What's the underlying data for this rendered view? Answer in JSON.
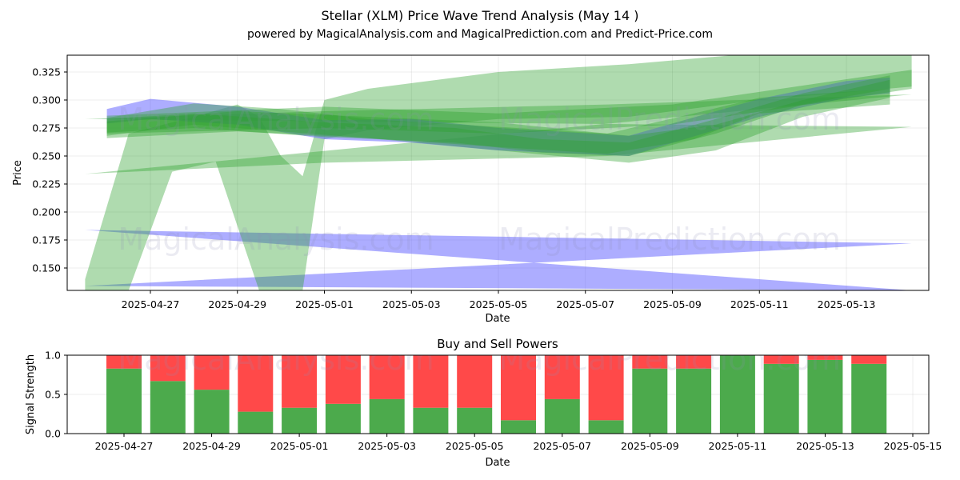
{
  "header": {
    "title": "Stellar (XLM) Price Wave Trend Analysis (May 14 )",
    "subtitle": "powered by MagicalAnalysis.com and MagicalPrediction.com and Predict-Price.com"
  },
  "watermarks": [
    "MagicalAnalysis.com",
    "MagicalPrediction.com"
  ],
  "colors": {
    "green": "#2ca02c",
    "blue": "#6a6aff",
    "buy": "#4caa4c",
    "sell": "#ff4949"
  },
  "chart_data": [
    {
      "type": "area",
      "xlabel": "Date",
      "ylabel": "Price",
      "ylim": [
        0.13,
        0.34
      ],
      "x_ticks": [
        "2025-04-27",
        "2025-04-29",
        "2025-05-01",
        "2025-05-03",
        "2025-05-05",
        "2025-05-07",
        "2025-05-09",
        "2025-05-11",
        "2025-05-13"
      ],
      "y_ticks": [
        "0.150",
        "0.175",
        "0.200",
        "0.225",
        "0.250",
        "0.275",
        "0.300",
        "0.325"
      ],
      "grid": true,
      "bands": [
        {
          "color": "blue",
          "upper": [
            [
              "2025-04-25T12:00",
              0.184
            ],
            [
              "2025-05-14T12:00",
              0.172
            ]
          ],
          "lower": [
            [
              "2025-04-25T12:00",
              0.134
            ],
            [
              "2025-05-14T12:00",
              0.13
            ]
          ]
        },
        {
          "color": "green",
          "upper": [
            [
              "2025-04-25T12:00",
              0.283
            ],
            [
              "2025-05-01T00:00",
              0.29
            ],
            [
              "2025-05-07T12:00",
              0.296
            ],
            [
              "2025-05-14T12:00",
              0.305
            ]
          ],
          "lower": [
            [
              "2025-04-25T12:00",
              0.234
            ],
            [
              "2025-05-01T00:00",
              0.244
            ],
            [
              "2025-05-07T12:00",
              0.25
            ],
            [
              "2025-05-14T12:00",
              0.276
            ]
          ]
        },
        {
          "color": "green",
          "upper": [
            [
              "2025-04-25T12:00",
              0.14
            ],
            [
              "2025-04-26T12:00",
              0.27
            ],
            [
              "2025-04-28T00:00",
              0.285
            ],
            [
              "2025-04-29T00:00",
              0.296
            ],
            [
              "2025-04-29T12:00",
              0.285
            ],
            [
              "2025-04-30T00:00",
              0.25
            ],
            [
              "2025-04-30T12:00",
              0.232
            ],
            [
              "2025-05-01T00:00",
              0.3
            ],
            [
              "2025-05-02T00:00",
              0.31
            ],
            [
              "2025-05-05T00:00",
              0.325
            ],
            [
              "2025-05-08T00:00",
              0.332
            ],
            [
              "2025-05-11T00:00",
              0.342
            ],
            [
              "2025-05-14T12:00",
              0.34
            ]
          ],
          "lower": [
            [
              "2025-05-14T12:00",
              0.312
            ],
            [
              "2025-05-11T00:00",
              0.3
            ],
            [
              "2025-05-08T00:00",
              0.285
            ],
            [
              "2025-05-05T00:00",
              0.283
            ],
            [
              "2025-05-02T00:00",
              0.273
            ],
            [
              "2025-05-01T00:00",
              0.265
            ],
            [
              "2025-04-30T12:00",
              0.13
            ],
            [
              "2025-04-29T12:00",
              0.13
            ],
            [
              "2025-04-28T12:00",
              0.245
            ],
            [
              "2025-04-27T12:00",
              0.236
            ],
            [
              "2025-04-26T12:00",
              0.13
            ],
            [
              "2025-04-25T12:00",
              0.13
            ]
          ]
        },
        {
          "color": "blue",
          "upper": [
            [
              "2025-04-26T00:00",
              0.292
            ],
            [
              "2025-04-27T00:00",
              0.301
            ],
            [
              "2025-04-29T00:00",
              0.294
            ],
            [
              "2025-05-01T00:00",
              0.282
            ],
            [
              "2025-05-03T00:00",
              0.283
            ],
            [
              "2025-05-05T00:00",
              0.275
            ],
            [
              "2025-05-08T00:00",
              0.268
            ],
            [
              "2025-05-11T00:00",
              0.301
            ],
            [
              "2025-05-13T00:00",
              0.317
            ],
            [
              "2025-05-14T00:00",
              0.32
            ]
          ],
          "lower": [
            [
              "2025-05-14T00:00",
              0.306
            ],
            [
              "2025-05-13T00:00",
              0.302
            ],
            [
              "2025-05-11T00:00",
              0.285
            ],
            [
              "2025-05-08T00:00",
              0.25
            ],
            [
              "2025-05-05T00:00",
              0.255
            ],
            [
              "2025-05-03T00:00",
              0.262
            ],
            [
              "2025-05-01T00:00",
              0.265
            ],
            [
              "2025-04-29T00:00",
              0.278
            ],
            [
              "2025-04-27T00:00",
              0.283
            ],
            [
              "2025-04-26T00:00",
              0.279
            ]
          ]
        },
        {
          "color": "green",
          "upper": [
            [
              "2025-04-26T00:00",
              0.284
            ],
            [
              "2025-04-28T00:00",
              0.297
            ],
            [
              "2025-04-30T00:00",
              0.292
            ],
            [
              "2025-05-02T00:00",
              0.283
            ],
            [
              "2025-05-05T00:00",
              0.276
            ],
            [
              "2025-05-07T12:00",
              0.27
            ],
            [
              "2025-05-09T12:00",
              0.288
            ],
            [
              "2025-05-11T00:00",
              0.302
            ],
            [
              "2025-05-14T00:00",
              0.31
            ]
          ],
          "lower": [
            [
              "2025-05-14T00:00",
              0.296
            ],
            [
              "2025-05-11T00:00",
              0.288
            ],
            [
              "2025-05-09T12:00",
              0.265
            ],
            [
              "2025-05-07T12:00",
              0.252
            ],
            [
              "2025-05-05T00:00",
              0.258
            ],
            [
              "2025-05-02T00:00",
              0.266
            ],
            [
              "2025-04-30T00:00",
              0.272
            ],
            [
              "2025-04-28T00:00",
              0.278
            ],
            [
              "2025-04-26T00:00",
              0.268
            ]
          ]
        },
        {
          "color": "green",
          "upper": [
            [
              "2025-04-26T00:00",
              0.281
            ],
            [
              "2025-04-29T00:00",
              0.29
            ],
            [
              "2025-05-02T00:00",
              0.285
            ],
            [
              "2025-05-05T00:00",
              0.28
            ],
            [
              "2025-05-08T00:00",
              0.268
            ],
            [
              "2025-05-10T00:00",
              0.278
            ],
            [
              "2025-05-12T00:00",
              0.3
            ],
            [
              "2025-05-14T00:00",
              0.318
            ]
          ],
          "lower": [
            [
              "2025-05-14T00:00",
              0.302
            ],
            [
              "2025-05-12T00:00",
              0.285
            ],
            [
              "2025-05-10T00:00",
              0.255
            ],
            [
              "2025-05-08T00:00",
              0.244
            ],
            [
              "2025-05-05T00:00",
              0.255
            ],
            [
              "2025-05-02T00:00",
              0.266
            ],
            [
              "2025-04-29T00:00",
              0.272
            ],
            [
              "2025-04-26T00:00",
              0.266
            ]
          ]
        },
        {
          "color": "green",
          "upper": [
            [
              "2025-04-26T00:00",
              0.286
            ],
            [
              "2025-05-01T00:00",
              0.294
            ],
            [
              "2025-05-05T00:00",
              0.288
            ],
            [
              "2025-05-09T00:00",
              0.296
            ],
            [
              "2025-05-14T12:00",
              0.327
            ]
          ],
          "lower": [
            [
              "2025-05-14T12:00",
              0.31
            ],
            [
              "2025-05-09T00:00",
              0.278
            ],
            [
              "2025-05-05T00:00",
              0.27
            ],
            [
              "2025-05-01T00:00",
              0.275
            ],
            [
              "2025-04-26T00:00",
              0.27
            ]
          ]
        },
        {
          "color": "green",
          "upper": [
            [
              "2025-04-26T00:00",
              0.283
            ],
            [
              "2025-04-28T00:00",
              0.288
            ],
            [
              "2025-05-01T00:00",
              0.28
            ],
            [
              "2025-05-04T00:00",
              0.275
            ],
            [
              "2025-05-06T00:00",
              0.265
            ],
            [
              "2025-05-08T00:00",
              0.262
            ],
            [
              "2025-05-10T00:00",
              0.283
            ],
            [
              "2025-05-12T00:00",
              0.306
            ],
            [
              "2025-05-14T00:00",
              0.322
            ]
          ],
          "lower": [
            [
              "2025-05-14T00:00",
              0.31
            ],
            [
              "2025-05-12T00:00",
              0.296
            ],
            [
              "2025-05-10T00:00",
              0.27
            ],
            [
              "2025-05-08T00:00",
              0.25
            ],
            [
              "2025-05-06T00:00",
              0.253
            ],
            [
              "2025-05-04T00:00",
              0.262
            ],
            [
              "2025-05-01T00:00",
              0.267
            ],
            [
              "2025-04-28T00:00",
              0.275
            ],
            [
              "2025-04-26T00:00",
              0.271
            ]
          ]
        }
      ]
    },
    {
      "type": "bar",
      "title": "Buy and Sell Powers",
      "xlabel": "Date",
      "ylabel": "Signal Strength",
      "ylim": [
        0,
        1
      ],
      "y_ticks": [
        "0.0",
        "0.5",
        "1.0"
      ],
      "x_ticks": [
        "2025-04-27",
        "2025-04-29",
        "2025-05-01",
        "2025-05-03",
        "2025-05-05",
        "2025-05-07",
        "2025-05-09",
        "2025-05-11",
        "2025-05-13",
        "2025-05-15"
      ],
      "categories": [
        "2025-04-27",
        "2025-04-28",
        "2025-04-29",
        "2025-04-30",
        "2025-05-01",
        "2025-05-02",
        "2025-05-03",
        "2025-05-04",
        "2025-05-05",
        "2025-05-06",
        "2025-05-07",
        "2025-05-08",
        "2025-05-09",
        "2025-05-10",
        "2025-05-11",
        "2025-05-12",
        "2025-05-13",
        "2025-05-14"
      ],
      "series": [
        {
          "color": "buy",
          "values": [
            0.83,
            0.67,
            0.56,
            0.28,
            0.33,
            0.38,
            0.44,
            0.33,
            0.33,
            0.17,
            0.44,
            0.17,
            0.83,
            0.83,
            1.0,
            0.89,
            0.94,
            0.89
          ]
        },
        {
          "color": "sell",
          "values": [
            0.17,
            0.33,
            0.44,
            0.72,
            0.67,
            0.62,
            0.56,
            0.67,
            0.67,
            0.83,
            0.56,
            0.83,
            0.17,
            0.17,
            0.0,
            0.11,
            0.06,
            0.11
          ]
        }
      ]
    }
  ]
}
